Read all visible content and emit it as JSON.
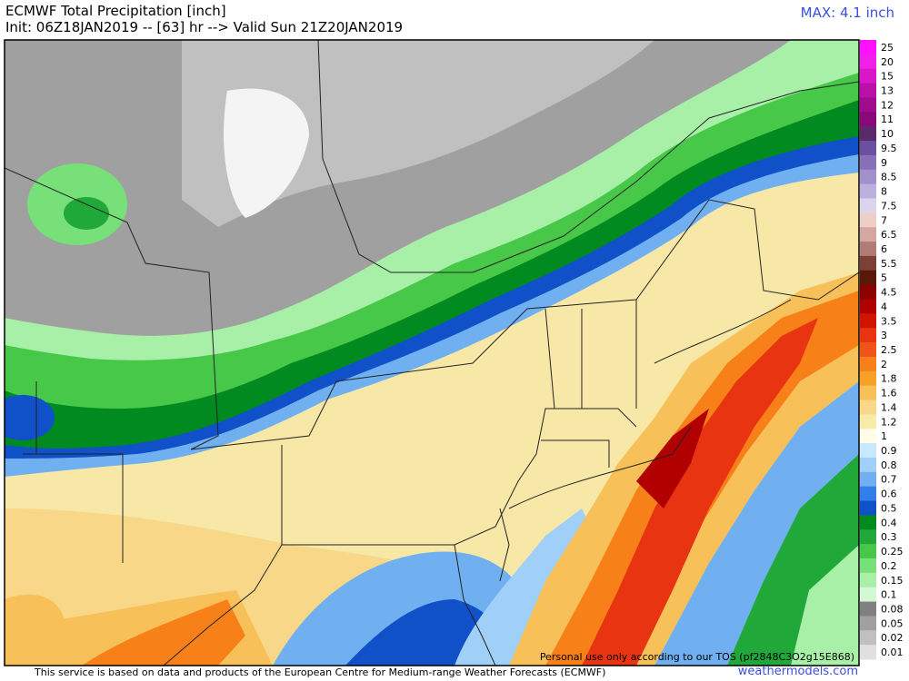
{
  "header": {
    "title": "ECMWF Total Precipitation [inch]",
    "subtitle": "Init: 06Z18JAN2019 -- [63] hr --> Valid Sun 21Z20JAN2019",
    "max": "MAX: 4.1 inch"
  },
  "legend": {
    "items": [
      {
        "label": "25",
        "color": "#ff10ff"
      },
      {
        "label": "20",
        "color": "#f020e8"
      },
      {
        "label": "15",
        "color": "#d818c8"
      },
      {
        "label": "13",
        "color": "#b810a8"
      },
      {
        "label": "12",
        "color": "#a00c90"
      },
      {
        "label": "11",
        "color": "#880a78"
      },
      {
        "label": "10",
        "color": "#5a2a6a"
      },
      {
        "label": "9.5",
        "color": "#6c50a0"
      },
      {
        "label": "9",
        "color": "#8870b8"
      },
      {
        "label": "8.5",
        "color": "#a090cc"
      },
      {
        "label": "8",
        "color": "#bcb0dc"
      },
      {
        "label": "7.5",
        "color": "#dcd4ec"
      },
      {
        "label": "7",
        "color": "#ecd0c8"
      },
      {
        "label": "6.5",
        "color": "#d4a8a0"
      },
      {
        "label": "6",
        "color": "#b07c74"
      },
      {
        "label": "5.5",
        "color": "#7c4034"
      },
      {
        "label": "5",
        "color": "#5a1808"
      },
      {
        "label": "4.5",
        "color": "#8c0000"
      },
      {
        "label": "4",
        "color": "#b00000"
      },
      {
        "label": "3.5",
        "color": "#d01400"
      },
      {
        "label": "3",
        "color": "#e83410"
      },
      {
        "label": "2.5",
        "color": "#f05418"
      },
      {
        "label": "2",
        "color": "#f88018"
      },
      {
        "label": "1.8",
        "color": "#f8a028"
      },
      {
        "label": "1.6",
        "color": "#f8c058"
      },
      {
        "label": "1.4",
        "color": "#f8d888"
      },
      {
        "label": "1.2",
        "color": "#f8eaa8"
      },
      {
        "label": "1",
        "color": "#fffce8"
      },
      {
        "label": "0.9",
        "color": "#c8e8ff"
      },
      {
        "label": "0.8",
        "color": "#a0d0f8"
      },
      {
        "label": "0.7",
        "color": "#70b0f0"
      },
      {
        "label": "0.6",
        "color": "#3080e8"
      },
      {
        "label": "0.5",
        "color": "#1050c8"
      },
      {
        "label": "0.4",
        "color": "#008a20"
      },
      {
        "label": "0.3",
        "color": "#20a838"
      },
      {
        "label": "0.25",
        "color": "#48c848"
      },
      {
        "label": "0.2",
        "color": "#78e078"
      },
      {
        "label": "0.15",
        "color": "#a8f0a8"
      },
      {
        "label": "0.1",
        "color": "#d4f8d4"
      },
      {
        "label": "0.08",
        "color": "#808080"
      },
      {
        "label": "0.05",
        "color": "#a0a0a0"
      },
      {
        "label": "0.02",
        "color": "#c0c0c0"
      },
      {
        "label": "0.01",
        "color": "#e0e0e0"
      }
    ]
  },
  "map": {
    "notice": "Personal use only according to our TOS (pf2848C3O2g15E868)"
  },
  "footer": {
    "credit": "This service is based on data and products of the European Centre for Medium-range Weather Forecasts (ECMWF)",
    "site": "weathermodels.com"
  }
}
